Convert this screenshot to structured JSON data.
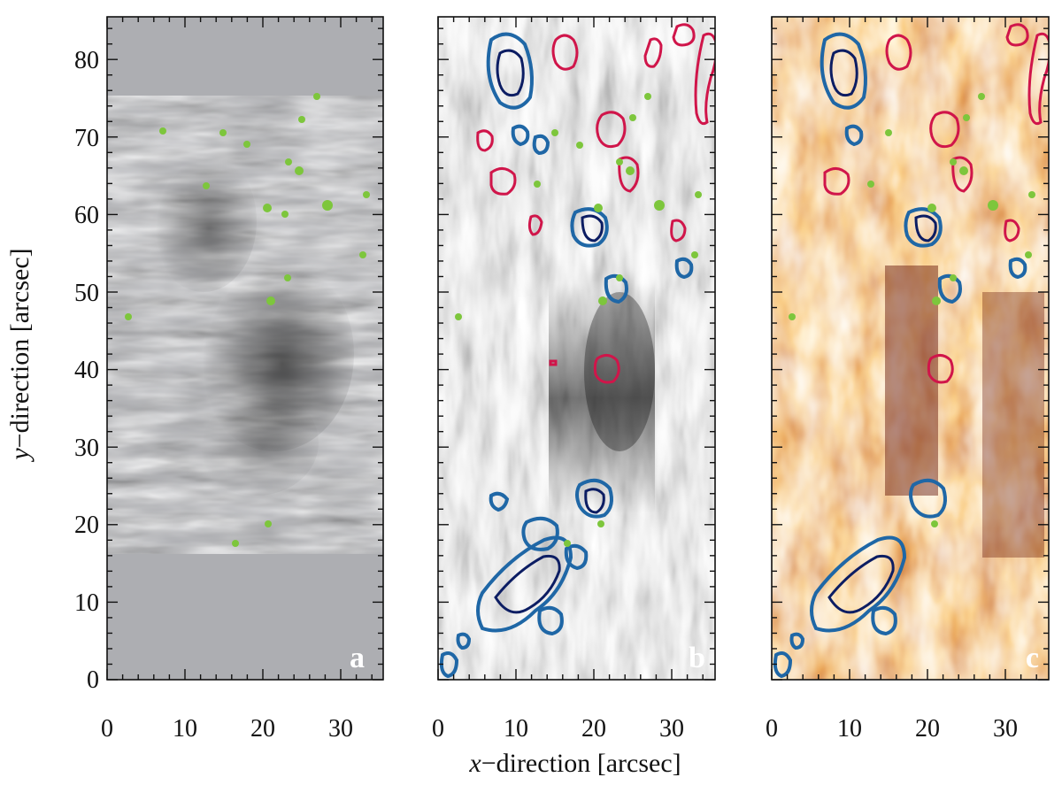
{
  "figure": {
    "y_axis_label_var": "y",
    "y_axis_label_rest": "−direction  [arcsec]",
    "x_axis_label_var": "x",
    "x_axis_label_rest": "−direction  [arcsec]",
    "x_ticks": [
      "0",
      "10",
      "20",
      "30"
    ],
    "y_ticks": [
      "0",
      "10",
      "20",
      "30",
      "40",
      "50",
      "60",
      "70",
      "80"
    ]
  },
  "panels": [
    {
      "letter": "a",
      "style": "grayscale chromosphere image with masked top/bottom",
      "mask_color": "#adaeb2"
    },
    {
      "letter": "b",
      "style": "grayscale fibril image with contours"
    },
    {
      "letter": "c",
      "style": "heat-colormap map with contours"
    }
  ],
  "colors": {
    "positive_contour": "#d0154a",
    "negative_contour_outer": "#1f67a6",
    "negative_contour_inner": "#0c1d63",
    "marker_green": "#7dc63c",
    "heat_dark": "#5e0b00",
    "heat_mid": "#c75a10",
    "heat_light": "#fff6e8"
  }
}
